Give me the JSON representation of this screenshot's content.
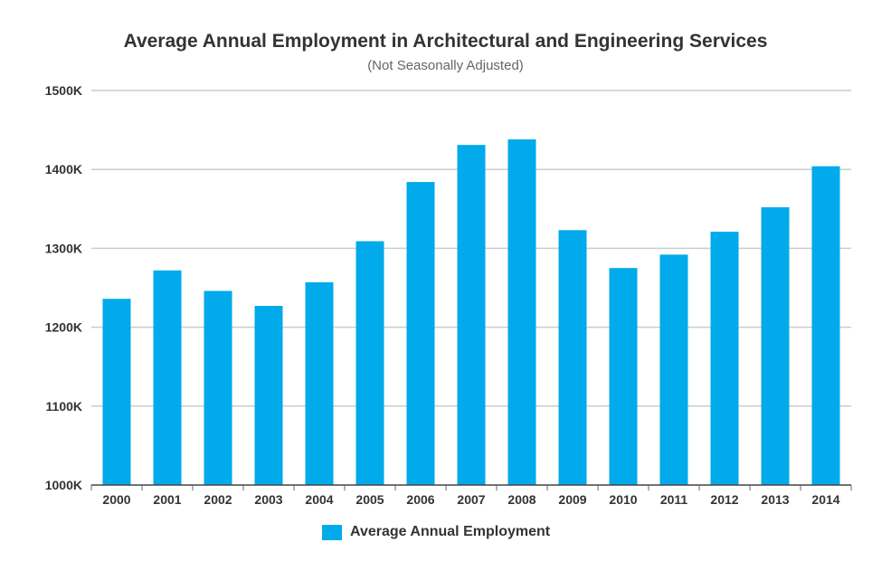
{
  "chart_data": {
    "type": "bar",
    "title": "Average Annual Employment in Architectural and Engineering Services",
    "subtitle": "(Not Seasonally Adjusted)",
    "xlabel": "",
    "ylabel": "",
    "categories": [
      "2000",
      "2001",
      "2002",
      "2003",
      "2004",
      "2005",
      "2006",
      "2007",
      "2008",
      "2009",
      "2010",
      "2011",
      "2012",
      "2013",
      "2014"
    ],
    "series": [
      {
        "name": "Average Annual Employment",
        "values": [
          1236,
          1272,
          1246,
          1227,
          1257,
          1309,
          1384,
          1431,
          1438,
          1323,
          1275,
          1292,
          1321,
          1352,
          1404
        ]
      }
    ],
    "unit": "thousands",
    "ylim": [
      1000,
      1500
    ],
    "yticks": [
      1000,
      1100,
      1200,
      1300,
      1400,
      1500
    ],
    "ytick_labels": [
      "1000K",
      "1100K",
      "1200K",
      "1300K",
      "1400K",
      "1500K"
    ],
    "grid": true,
    "legend": "bottom",
    "colors": {
      "bar": "#00aaeb",
      "grid": "#cccccc",
      "axis": "#666666"
    }
  }
}
